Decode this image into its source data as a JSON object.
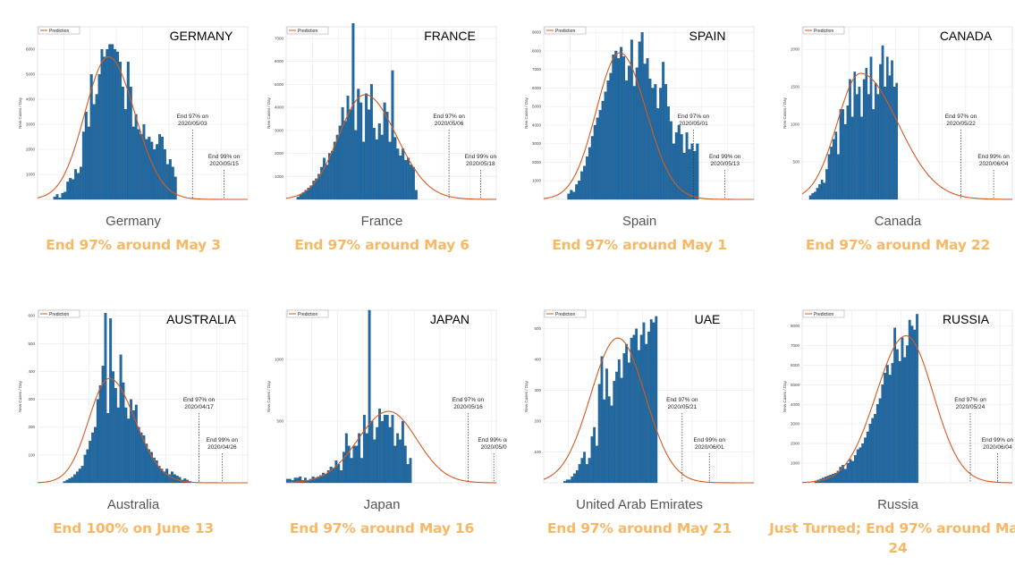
{
  "legend_label": "Prediction",
  "ylabel": "New Cases / Day",
  "colors": {
    "bar": "#1f6aa5",
    "bar_edge": "#0d3f66",
    "line": "#d35a1f",
    "caption_text": "#555555",
    "headline": "#f7b866"
  },
  "panels": [
    {
      "chart_title": "GERMANY",
      "caption": "Germany",
      "headline": "End 97% around May 3",
      "annot97": [
        "End 97% on",
        "2020/05/03"
      ],
      "annot99": [
        "End 99% on",
        "2020/05/15"
      ],
      "chart_data": {
        "type": "bar",
        "ylim": [
          0,
          6900
        ],
        "yticks": [
          1000,
          2000,
          3000,
          4000,
          5000,
          6000
        ],
        "ytick_labels": [
          "1000",
          "2000",
          "3000",
          "4000",
          "5000",
          "6000"
        ],
        "n_days": 80,
        "bar_start": 6,
        "values": [
          100,
          200,
          60,
          250,
          300,
          700,
          850,
          800,
          1200,
          1050,
          1300,
          2700,
          3500,
          2900,
          5000,
          3800,
          4200,
          5000,
          6000,
          5700,
          6000,
          6200,
          6200,
          6000,
          5900,
          5500,
          4500,
          3600,
          5500,
          4500,
          2900,
          3400,
          2800,
          2600,
          3000,
          2400,
          2500,
          2300,
          2000,
          2200,
          2600,
          2500,
          2000,
          1400,
          1600,
          1300,
          900
        ],
        "fit_peak_day": 27,
        "fit_peak": 5700,
        "fit_width_left": 9,
        "fit_width_right": 10,
        "mark97_day": 59,
        "mark99_day": 71
      }
    },
    {
      "chart_title": "FRANCE",
      "caption": "France",
      "headline": "End 97% around May 6",
      "annot97": [
        "End 97% on",
        "2020/05/06"
      ],
      "annot99": [
        "End 99% on",
        "2020/05/18"
      ],
      "chart_data": {
        "type": "bar",
        "ylim": [
          0,
          7500
        ],
        "yticks": [
          1000,
          2000,
          3000,
          4000,
          5000,
          6000,
          7000
        ],
        "ytick_labels": [
          "1000",
          "2000",
          "3000",
          "4000",
          "5000",
          "6000",
          "7000"
        ],
        "n_days": 80,
        "bar_start": 4,
        "values": [
          100,
          200,
          300,
          400,
          500,
          600,
          800,
          900,
          1100,
          1400,
          1800,
          1500,
          2000,
          2100,
          2500,
          2800,
          3200,
          4000,
          3400,
          4500,
          3900,
          7700,
          3000,
          4800,
          4200,
          2500,
          4600,
          3900,
          5000,
          3100,
          2600,
          3300,
          2800,
          4200,
          3800,
          2500,
          5600,
          2700,
          2200,
          1900,
          2200,
          1700,
          1800,
          1500,
          1400,
          400
        ],
        "fit_peak_day": 30,
        "fit_peak": 4550,
        "fit_width_left": 10,
        "fit_width_right": 12,
        "mark97_day": 62,
        "mark99_day": 74
      }
    },
    {
      "chart_title": "SPAIN",
      "caption": "Spain",
      "headline": "End 97% around May 1",
      "annot97": [
        "End 97% on",
        "2020/05/01"
      ],
      "annot99": [
        "End 99% on",
        "2020/05/13"
      ],
      "chart_data": {
        "type": "bar",
        "ylim": [
          0,
          9300
        ],
        "yticks": [
          1000,
          2000,
          3000,
          4000,
          5000,
          6000,
          7000,
          8000,
          9000
        ],
        "ytick_labels": [
          "1000",
          "2000",
          "3000",
          "4000",
          "5000",
          "6000",
          "7000",
          "8000",
          "9000"
        ],
        "n_days": 80,
        "bar_start": 9,
        "values": [
          300,
          500,
          400,
          800,
          1000,
          1500,
          1800,
          2300,
          2800,
          3400,
          4000,
          4400,
          4800,
          5300,
          5800,
          6400,
          6800,
          7800,
          8000,
          7600,
          8200,
          7700,
          6400,
          7200,
          8600,
          6100,
          7100,
          8500,
          9000,
          7300,
          7600,
          6500,
          6000,
          6200,
          4900,
          6000,
          7400,
          6200,
          5000,
          4200,
          3000,
          3600,
          4000,
          3500,
          2500,
          3600,
          2700,
          3000,
          2600,
          3000
        ],
        "fit_peak_day": 29,
        "fit_peak": 7900,
        "fit_width_left": 9,
        "fit_width_right": 10,
        "mark97_day": 57,
        "mark99_day": 69
      }
    },
    {
      "chart_title": "CANADA",
      "caption": "Canada",
      "headline": "End 97% around May 22",
      "annot97": [
        "End 97% on",
        "2020/05/22"
      ],
      "annot99": [
        "End 99% on",
        "2020/06/04"
      ],
      "chart_data": {
        "type": "bar",
        "ylim": [
          0,
          2300
        ],
        "yticks": [
          500,
          1000,
          1500,
          2000
        ],
        "ytick_labels": [
          "500",
          "1000",
          "1500",
          "2000"
        ],
        "n_days": 90,
        "bar_start": 3,
        "values": [
          50,
          80,
          100,
          150,
          200,
          260,
          220,
          400,
          600,
          700,
          800,
          900,
          600,
          1200,
          1200,
          1000,
          1250,
          1600,
          1100,
          1700,
          1400,
          1500,
          1100,
          1600,
          1750,
          1400,
          1900,
          1200,
          1550,
          1400,
          1800,
          2050,
          1500,
          1900,
          1650,
          1850,
          1500,
          1550
        ],
        "fit_peak_day": 25,
        "fit_peak": 1680,
        "fit_width_left": 10,
        "fit_width_right": 16,
        "mark97_day": 68,
        "mark99_day": 82
      }
    },
    {
      "chart_title": "AUSTRALIA",
      "caption": "Australia",
      "headline": "End 100% on June 13",
      "annot97": [
        "End 97% on",
        "2020/04/17"
      ],
      "annot99": [
        "End 99% on",
        "2020/04/26"
      ],
      "chart_data": {
        "type": "bar",
        "ylim": [
          0,
          620
        ],
        "yticks": [
          100,
          200,
          300,
          400,
          500,
          600
        ],
        "ytick_labels": [
          "100",
          "200",
          "300",
          "400",
          "500",
          "600"
        ],
        "n_days": 82,
        "bar_start": 10,
        "values": [
          5,
          10,
          15,
          20,
          30,
          40,
          50,
          60,
          100,
          120,
          150,
          180,
          200,
          300,
          350,
          420,
          610,
          250,
          590,
          400,
          340,
          270,
          460,
          360,
          270,
          230,
          300,
          260,
          280,
          200,
          180,
          170,
          140,
          120,
          110,
          90,
          80,
          60,
          50,
          40,
          50,
          30,
          40,
          30,
          25,
          20,
          10,
          15,
          10,
          5
        ],
        "fit_peak_day": 28,
        "fit_peak": 375,
        "fit_width_left": 8,
        "fit_width_right": 10,
        "mark97_day": 63,
        "mark99_day": 72
      }
    },
    {
      "chart_title": "JAPAN",
      "caption": "Japan",
      "headline": "End 97% around May 16",
      "annot97": [
        "End 97% on",
        "2020/05/16"
      ],
      "annot99": [
        "End 99% on",
        "2020/05/0"
      ],
      "chart_data": {
        "type": "bar",
        "ylim": [
          0,
          1400
        ],
        "yticks": [
          500,
          1000
        ],
        "ytick_labels": [
          "500",
          "1000"
        ],
        "n_days": 82,
        "bar_start": 0,
        "values": [
          30,
          30,
          20,
          40,
          40,
          50,
          20,
          40,
          20,
          30,
          50,
          40,
          50,
          60,
          80,
          70,
          100,
          130,
          120,
          180,
          150,
          100,
          250,
          400,
          300,
          200,
          300,
          300,
          400,
          200,
          550,
          400,
          1400,
          500,
          350,
          450,
          600,
          500,
          550,
          550,
          450,
          550,
          300,
          400,
          350,
          500,
          300,
          150,
          200
        ],
        "fit_peak_day": 40,
        "fit_peak": 580,
        "fit_width_left": 12,
        "fit_width_right": 11,
        "mark97_day": 71,
        "mark99_day": 81
      }
    },
    {
      "chart_title": "UAE",
      "caption": "United Arab Emirates",
      "headline": "End 97% around May 21",
      "annot97": [
        "End 97% on",
        "2020/05/21"
      ],
      "annot99": [
        "End 99% on",
        "2020/06/01"
      ],
      "chart_data": {
        "type": "bar",
        "ylim": [
          0,
          560
        ],
        "yticks": [
          100,
          200,
          300,
          400,
          500
        ],
        "ytick_labels": [
          "100",
          "200",
          "300",
          "400",
          "500"
        ],
        "n_days": 85,
        "bar_start": 8,
        "values": [
          5,
          10,
          10,
          20,
          30,
          40,
          60,
          80,
          100,
          60,
          80,
          150,
          180,
          120,
          320,
          410,
          270,
          370,
          280,
          250,
          330,
          360,
          400,
          340,
          420,
          450,
          390,
          470,
          480,
          500,
          430,
          480,
          520,
          450,
          490,
          530,
          520,
          540
        ],
        "fit_peak_day": 30,
        "fit_peak": 470,
        "fit_width_left": 11,
        "fit_width_right": 11,
        "mark97_day": 56,
        "mark99_day": 67
      }
    },
    {
      "chart_title": "RUSSIA",
      "caption": "Russia",
      "headline": "Just Turned; End 97% around May 24",
      "annot97": [
        "End 97% on",
        "2020/05/24"
      ],
      "annot99": [
        "End 99% on",
        "2020/06/04"
      ],
      "chart_data": {
        "type": "bar",
        "ylim": [
          0,
          8800
        ],
        "yticks": [
          1000,
          2000,
          3000,
          4000,
          5000,
          6000,
          7000,
          8000
        ],
        "ytick_labels": [
          "1000",
          "2000",
          "3000",
          "4000",
          "5000",
          "6000",
          "7000",
          "8000"
        ],
        "n_days": 85,
        "bar_start": 5,
        "values": [
          100,
          150,
          200,
          250,
          300,
          350,
          400,
          450,
          500,
          600,
          800,
          900,
          700,
          1000,
          1200,
          1100,
          1400,
          1700,
          1800,
          2000,
          2300,
          2600,
          3000,
          3300,
          3500,
          4000,
          4300,
          5000,
          5600,
          6000,
          5500,
          6100,
          7900,
          6800,
          6200,
          7400,
          6400,
          7000,
          8300,
          8000,
          7800,
          8600
        ],
        "fit_peak_day": 42,
        "fit_peak": 7500,
        "fit_width_left": 12,
        "fit_width_right": 11,
        "mark97_day": 68,
        "mark99_day": 79
      }
    }
  ]
}
